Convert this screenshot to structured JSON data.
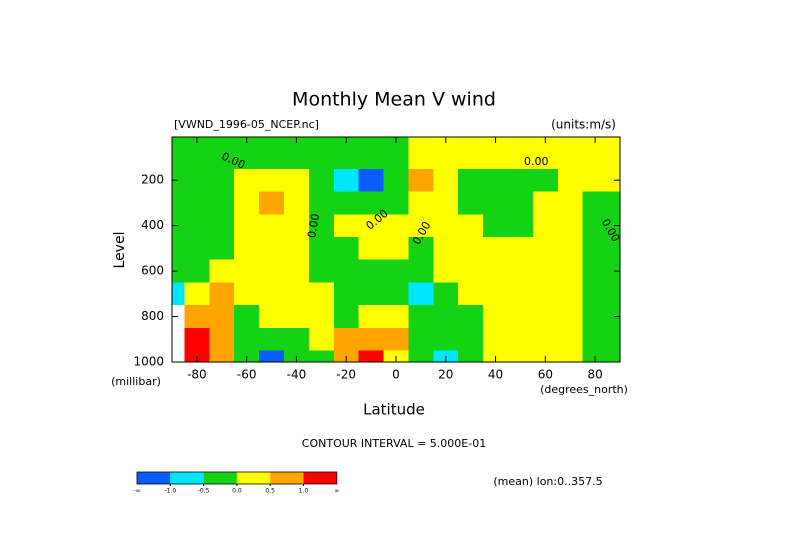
{
  "chart_data": {
    "type": "contour",
    "title": "Monthly Mean V wind",
    "subtitle": "[VWND_1996-05_NCEP.nc]",
    "units": "(units:m/s)",
    "x_label": "Latitude",
    "x_units": "(degrees_north)",
    "y_label": "Level",
    "y_units": "(millibar)",
    "contour_interval": "CONTOUR INTERVAL = 5.000E-01",
    "footer": "(mean) lon:0..357.5",
    "contour_label": "0.00",
    "x": [
      -90,
      -80,
      -70,
      -60,
      -50,
      -40,
      -30,
      -20,
      -10,
      0,
      10,
      20,
      30,
      40,
      50,
      60,
      70,
      80,
      90
    ],
    "y": [
      100,
      200,
      300,
      400,
      500,
      600,
      700,
      800,
      900,
      1000
    ],
    "z": [
      [
        -0.2,
        -0.2,
        -0.3,
        -0.2,
        -0.1,
        -0.2,
        -0.2,
        -0.3,
        -0.3,
        -0.1,
        0.1,
        0.2,
        0.1,
        0.2,
        0.1,
        0.1,
        0.2,
        0.1,
        0.1
      ],
      [
        -0.2,
        -0.3,
        -0.2,
        0.2,
        0.3,
        0.3,
        -0.2,
        -0.6,
        -1.2,
        -0.4,
        0.7,
        0.2,
        -0.2,
        -0.2,
        -0.2,
        -0.1,
        0.2,
        0.2,
        0.1
      ],
      [
        -0.2,
        -0.3,
        -0.2,
        0.3,
        0.6,
        0.3,
        -0.1,
        -0.3,
        -0.5,
        -0.1,
        0.2,
        0.1,
        -0.1,
        -0.2,
        -0.1,
        0.1,
        0.2,
        -0.1,
        -0.2
      ],
      [
        -0.2,
        -0.2,
        -0.1,
        0.3,
        0.3,
        0.2,
        -0.1,
        0.2,
        0.3,
        0.2,
        0.1,
        0.2,
        0.2,
        -0.1,
        -0.1,
        0.2,
        0.1,
        -0.1,
        -0.2
      ],
      [
        -0.3,
        -0.2,
        -0.2,
        0.2,
        0.3,
        0.2,
        -0.1,
        -0.1,
        0.2,
        0.1,
        -0.1,
        0.2,
        0.3,
        0.1,
        0.2,
        0.2,
        0.1,
        -0.1,
        -0.2
      ],
      [
        -0.3,
        -0.2,
        0.1,
        0.2,
        0.3,
        0.2,
        -0.1,
        -0.2,
        -0.1,
        -0.2,
        -0.2,
        0.1,
        0.3,
        0.2,
        0.3,
        0.2,
        0.1,
        -0.1,
        -0.2
      ],
      [
        -0.6,
        0.3,
        0.6,
        0.3,
        0.3,
        0.2,
        0.1,
        -0.2,
        -0.2,
        -0.3,
        -0.6,
        -0.1,
        0.2,
        0.2,
        0.3,
        0.2,
        0.2,
        -0.1,
        -0.2
      ],
      [
        null,
        0.7,
        0.8,
        -0.2,
        0.2,
        0.3,
        0.1,
        -0.1,
        0.2,
        0.1,
        -0.2,
        -0.2,
        -0.1,
        0.2,
        0.2,
        0.3,
        0.2,
        -0.1,
        -0.1
      ],
      [
        null,
        1.3,
        0.7,
        -0.2,
        -0.4,
        -0.2,
        0.2,
        0.7,
        0.9,
        0.5,
        -0.3,
        -0.3,
        -0.2,
        0.2,
        0.3,
        0.3,
        0.2,
        -0.1,
        -0.1
      ],
      [
        null,
        1.6,
        0.6,
        -0.3,
        -1.2,
        -0.5,
        -0.1,
        0.8,
        1.3,
        0.4,
        -0.2,
        -0.7,
        -0.2,
        0.1,
        0.2,
        0.2,
        0.1,
        -0.1,
        -0.2
      ]
    ],
    "xlim": [
      -90,
      90
    ],
    "ylim": [
      1000,
      10
    ],
    "xticks": [
      -80,
      -60,
      -40,
      -20,
      0,
      20,
      40,
      60,
      80
    ],
    "yticks": [
      200,
      400,
      600,
      800,
      1000
    ],
    "colorbar": {
      "colors": [
        "#0a5cff",
        "#00e6ff",
        "#14d214",
        "#ffff00",
        "#ffa500",
        "#ff0000"
      ],
      "levels": [
        {
          "value": -1,
          "label": "-1.0"
        },
        {
          "value": -0.5,
          "label": "-0.5"
        },
        {
          "value": 0,
          "label": "0.0"
        },
        {
          "value": 0.5,
          "label": "0.5"
        },
        {
          "value": 1,
          "label": "1.0"
        }
      ],
      "ends": [
        "-∞",
        "∞"
      ]
    }
  }
}
